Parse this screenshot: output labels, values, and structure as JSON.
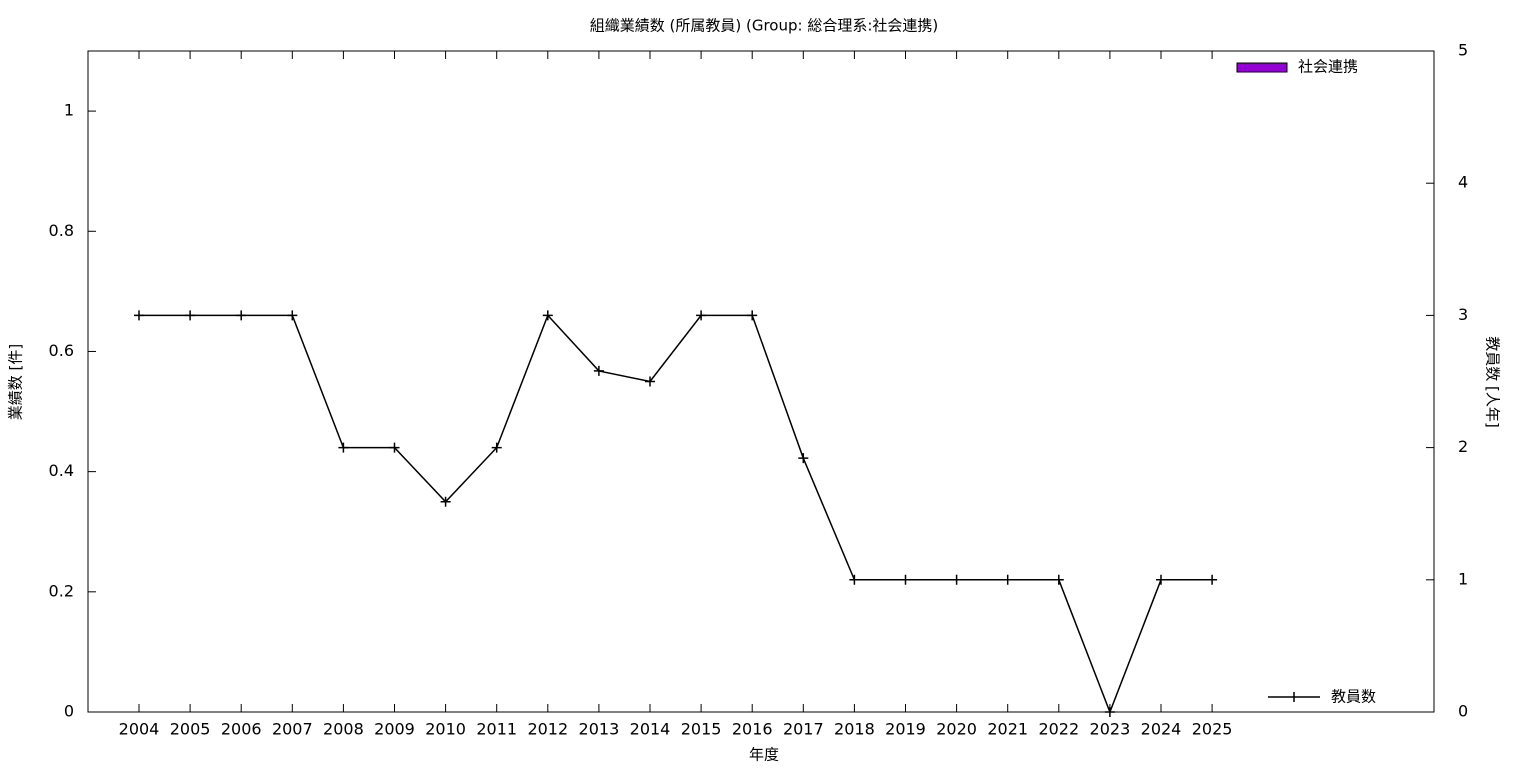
{
  "chart_data": {
    "type": "bar",
    "title": "組織業績数 (所属教員) (Group: 総合理系:社会連携)",
    "x_label": "年度",
    "y_label": "業績数 [件]",
    "y2_label": "教員数 [人年]",
    "categories": [
      "2004",
      "2005",
      "2006",
      "2007",
      "2008",
      "2009",
      "2010",
      "2011",
      "2012",
      "2013",
      "2014",
      "2015",
      "2016",
      "2017",
      "2018",
      "2019",
      "2020",
      "2021",
      "2022",
      "2023",
      "2024",
      "2025"
    ],
    "ylim": [
      0,
      1.1
    ],
    "yticks": [
      0,
      0.2,
      0.4,
      0.6,
      0.8,
      1
    ],
    "y2lim": [
      0,
      5
    ],
    "y2ticks": [
      0,
      1,
      2,
      3,
      4,
      5
    ],
    "series": [
      {
        "name": "社会連携",
        "type": "bar",
        "color": "#9400d3",
        "values": [
          0,
          0,
          0,
          0,
          0,
          0,
          0,
          0,
          0,
          0,
          0,
          0,
          0,
          0,
          0,
          0,
          0,
          0,
          0,
          0,
          0,
          0
        ]
      },
      {
        "name": "教員数",
        "type": "line",
        "axis": "y2",
        "color": "#000000",
        "values": [
          3,
          3,
          3,
          3,
          2,
          2,
          1.59,
          2,
          3,
          2.58,
          2.5,
          3,
          3,
          1.92,
          1,
          1,
          1,
          1,
          1,
          0,
          1,
          1
        ]
      }
    ]
  }
}
